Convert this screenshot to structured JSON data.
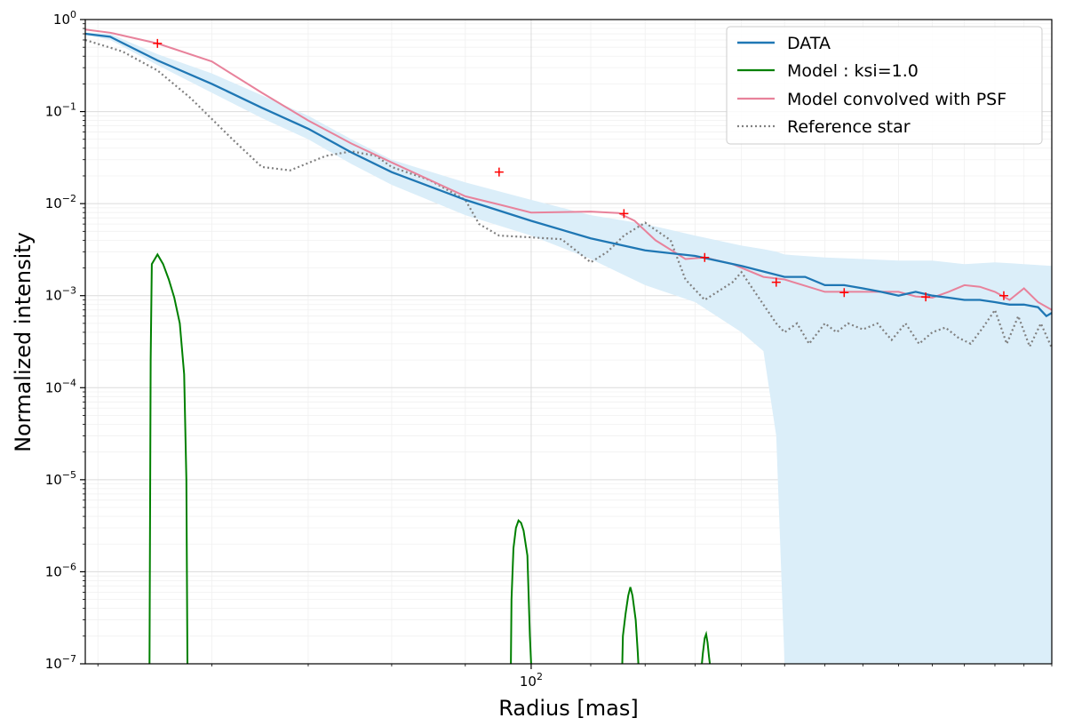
{
  "chart_data": {
    "type": "line",
    "xscale": "log",
    "yscale": "log",
    "xlabel": "Radius [mas]",
    "ylabel": "Normalized intensity",
    "xlim": [
      49,
      230
    ],
    "ylim": [
      1e-07,
      1
    ],
    "x_ticks": [
      {
        "value": 100,
        "base": "10",
        "exp": "2"
      }
    ],
    "y_ticks": [
      {
        "value": 1,
        "base": "10",
        "exp": "0"
      },
      {
        "value": 0.1,
        "base": "10",
        "exp": "−1"
      },
      {
        "value": 0.01,
        "base": "10",
        "exp": "−2"
      },
      {
        "value": 0.001,
        "base": "10",
        "exp": "−3"
      },
      {
        "value": 0.0001,
        "base": "10",
        "exp": "−4"
      },
      {
        "value": 1e-05,
        "base": "10",
        "exp": "−5"
      },
      {
        "value": 1e-06,
        "base": "10",
        "exp": "−6"
      },
      {
        "value": 1e-07,
        "base": "10",
        "exp": "−7"
      }
    ],
    "grid": true,
    "legend_position": "top-right",
    "colors": {
      "data": "#1f77b4",
      "model": "#008000",
      "convolved": "#e8829b",
      "reference": "#808080",
      "band": "#dbeef9",
      "markers": "#ff0000"
    },
    "series": [
      {
        "name": "DATA",
        "style": "solid",
        "x": [
          49,
          51,
          55,
          60,
          65,
          70,
          75,
          80,
          90,
          100,
          110,
          120,
          130,
          140,
          150,
          155,
          160,
          165,
          170,
          175,
          180,
          185,
          190,
          195,
          200,
          205,
          210,
          215,
          220,
          225,
          228,
          230
        ],
        "y": [
          0.7,
          0.65,
          0.36,
          0.2,
          0.11,
          0.065,
          0.036,
          0.022,
          0.011,
          0.0065,
          0.0042,
          0.0031,
          0.0027,
          0.0021,
          0.0016,
          0.0016,
          0.0013,
          0.0013,
          0.0012,
          0.0011,
          0.001,
          0.0011,
          0.001,
          0.00095,
          0.0009,
          0.0009,
          0.00085,
          0.0008,
          0.0008,
          0.00075,
          0.0006,
          0.00065
        ]
      },
      {
        "name": "Model : ksi=1.0",
        "style": "solid",
        "segments": [
          {
            "x": [
              54.3,
              54.4,
              54.5,
              55,
              55.5,
              56,
              56.5,
              57,
              57.4,
              57.6,
              57.7
            ],
            "y": [
              1e-07,
              0.0002,
              0.0022,
              0.0028,
              0.0022,
              0.0015,
              0.00095,
              0.0005,
              0.00014,
              1e-05,
              1e-07
            ]
          },
          {
            "x": [
              96.8,
              96.9,
              97.2,
              97.6,
              98,
              98.4,
              98.8,
              99.4,
              99.8,
              100.0
            ],
            "y": [
              1e-07,
              5e-07,
              1.8e-06,
              3e-06,
              3.6e-06,
              3.4e-06,
              2.8e-06,
              1.5e-06,
              2e-07,
              1e-07
            ]
          },
          {
            "x": [
              115.7,
              115.8,
              116.3,
              116.8,
              117.2,
              117.6,
              118.2,
              118.6,
              118.7
            ],
            "y": [
              1e-07,
              2e-07,
              3.5e-07,
              5.5e-07,
              6.8e-07,
              5.5e-07,
              3e-07,
              1.3e-07,
              1e-07
            ]
          },
          {
            "x": [
              131.4,
              131.6,
              132.0,
              132.3,
              132.6,
              132.9,
              133.1
            ],
            "y": [
              1e-07,
              1.3e-07,
              1.9e-07,
              2.1e-07,
              1.7e-07,
              1.2e-07,
              1e-07
            ]
          }
        ]
      },
      {
        "name": "Model convolved with PSF",
        "style": "solid",
        "x": [
          49,
          51,
          55,
          60,
          65,
          70,
          75,
          80,
          90,
          95,
          100,
          110,
          115,
          118,
          122,
          128,
          132,
          138,
          145,
          150,
          160,
          170,
          175,
          180,
          185,
          190,
          195,
          200,
          205,
          210,
          215,
          220,
          225,
          230
        ],
        "y": [
          0.78,
          0.72,
          0.55,
          0.35,
          0.16,
          0.08,
          0.045,
          0.028,
          0.012,
          0.0098,
          0.008,
          0.0082,
          0.0079,
          0.0065,
          0.004,
          0.0025,
          0.0026,
          0.0022,
          0.0016,
          0.0015,
          0.0011,
          0.0011,
          0.0011,
          0.0011,
          0.00098,
          0.00095,
          0.0011,
          0.0013,
          0.00125,
          0.0011,
          0.0009,
          0.0012,
          0.00085,
          0.0007
        ]
      },
      {
        "name": "Reference star",
        "style": "dotted",
        "x": [
          49,
          52,
          55,
          58,
          62,
          65,
          68,
          72,
          75,
          78,
          80,
          85,
          90,
          92,
          95,
          100,
          105,
          110,
          113,
          116,
          120,
          125,
          128,
          132,
          138,
          140,
          145,
          148,
          150,
          153,
          156,
          160,
          163,
          166,
          170,
          174,
          178,
          182,
          186,
          190,
          194,
          198,
          202,
          206,
          210,
          214,
          218,
          222,
          226,
          230
        ],
        "y": [
          0.6,
          0.45,
          0.28,
          0.14,
          0.05,
          0.025,
          0.023,
          0.033,
          0.037,
          0.033,
          0.025,
          0.018,
          0.011,
          0.006,
          0.0045,
          0.0043,
          0.0041,
          0.0023,
          0.003,
          0.0045,
          0.0062,
          0.004,
          0.0015,
          0.0009,
          0.0014,
          0.0018,
          0.0008,
          0.0005,
          0.0004,
          0.0005,
          0.0003,
          0.0005,
          0.0004,
          0.0005,
          0.00043,
          0.0005,
          0.00033,
          0.0005,
          0.0003,
          0.0004,
          0.00045,
          0.00035,
          0.0003,
          0.00045,
          0.0007,
          0.0003,
          0.0006,
          0.00028,
          0.0005,
          0.00027
        ]
      }
    ],
    "band": {
      "x": [
        49,
        51,
        55,
        60,
        65,
        70,
        75,
        80,
        90,
        100,
        110,
        120,
        130,
        140,
        145,
        148,
        150,
        160,
        170,
        180,
        190,
        200,
        210,
        220,
        230
      ],
      "lower": [
        0.68,
        0.6,
        0.32,
        0.16,
        0.085,
        0.05,
        0.027,
        0.016,
        0.0075,
        0.0045,
        0.0025,
        0.0013,
        0.00085,
        0.0004,
        0.00025,
        3e-05,
        1e-07,
        1e-07,
        1e-07,
        1e-07,
        1e-07,
        1e-07,
        1e-07,
        1e-07,
        1e-07
      ],
      "upper": [
        0.72,
        0.7,
        0.42,
        0.26,
        0.15,
        0.09,
        0.05,
        0.03,
        0.017,
        0.011,
        0.0075,
        0.006,
        0.0045,
        0.0035,
        0.0032,
        0.003,
        0.0028,
        0.0026,
        0.0025,
        0.0024,
        0.0024,
        0.0022,
        0.0023,
        0.0022,
        0.0021
      ]
    },
    "markers": {
      "x": [
        55,
        95,
        116,
        132,
        148,
        165,
        188,
        213
      ],
      "y": [
        0.55,
        0.022,
        0.0078,
        0.0026,
        0.0014,
        0.00108,
        0.00097,
        0.001
      ]
    },
    "legend": [
      "DATA",
      "Model : ksi=1.0",
      "Model convolved with PSF",
      "Reference star"
    ]
  }
}
